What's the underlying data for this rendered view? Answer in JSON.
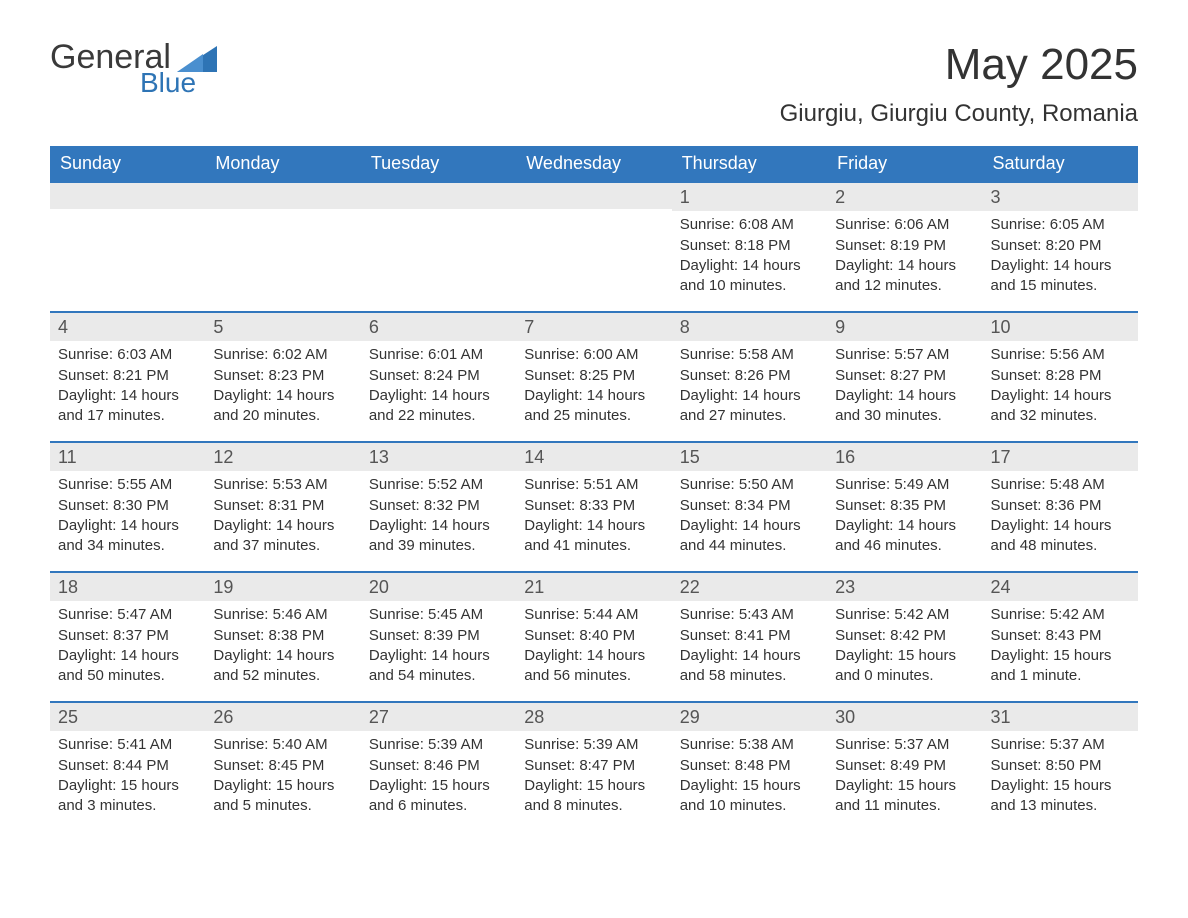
{
  "logo": {
    "word1": "General",
    "word2": "Blue"
  },
  "header": {
    "month_title": "May 2025",
    "location": "Giurgiu, Giurgiu County, Romania"
  },
  "colors": {
    "header_bg": "#3277bd",
    "header_text": "#ffffff",
    "daynum_bg": "#eaeaea",
    "week_border": "#3277bd",
    "logo_accent": "#2e74b5",
    "body_text": "#333333"
  },
  "days_of_week": [
    "Sunday",
    "Monday",
    "Tuesday",
    "Wednesday",
    "Thursday",
    "Friday",
    "Saturday"
  ],
  "labels": {
    "sunrise": "Sunrise:",
    "sunset": "Sunset:",
    "daylight": "Daylight:"
  },
  "weeks": [
    [
      {
        "blank": true
      },
      {
        "blank": true
      },
      {
        "blank": true
      },
      {
        "blank": true
      },
      {
        "n": "1",
        "sunrise": "6:08 AM",
        "sunset": "8:18 PM",
        "daylight": "14 hours and 10 minutes."
      },
      {
        "n": "2",
        "sunrise": "6:06 AM",
        "sunset": "8:19 PM",
        "daylight": "14 hours and 12 minutes."
      },
      {
        "n": "3",
        "sunrise": "6:05 AM",
        "sunset": "8:20 PM",
        "daylight": "14 hours and 15 minutes."
      }
    ],
    [
      {
        "n": "4",
        "sunrise": "6:03 AM",
        "sunset": "8:21 PM",
        "daylight": "14 hours and 17 minutes."
      },
      {
        "n": "5",
        "sunrise": "6:02 AM",
        "sunset": "8:23 PM",
        "daylight": "14 hours and 20 minutes."
      },
      {
        "n": "6",
        "sunrise": "6:01 AM",
        "sunset": "8:24 PM",
        "daylight": "14 hours and 22 minutes."
      },
      {
        "n": "7",
        "sunrise": "6:00 AM",
        "sunset": "8:25 PM",
        "daylight": "14 hours and 25 minutes."
      },
      {
        "n": "8",
        "sunrise": "5:58 AM",
        "sunset": "8:26 PM",
        "daylight": "14 hours and 27 minutes."
      },
      {
        "n": "9",
        "sunrise": "5:57 AM",
        "sunset": "8:27 PM",
        "daylight": "14 hours and 30 minutes."
      },
      {
        "n": "10",
        "sunrise": "5:56 AM",
        "sunset": "8:28 PM",
        "daylight": "14 hours and 32 minutes."
      }
    ],
    [
      {
        "n": "11",
        "sunrise": "5:55 AM",
        "sunset": "8:30 PM",
        "daylight": "14 hours and 34 minutes."
      },
      {
        "n": "12",
        "sunrise": "5:53 AM",
        "sunset": "8:31 PM",
        "daylight": "14 hours and 37 minutes."
      },
      {
        "n": "13",
        "sunrise": "5:52 AM",
        "sunset": "8:32 PM",
        "daylight": "14 hours and 39 minutes."
      },
      {
        "n": "14",
        "sunrise": "5:51 AM",
        "sunset": "8:33 PM",
        "daylight": "14 hours and 41 minutes."
      },
      {
        "n": "15",
        "sunrise": "5:50 AM",
        "sunset": "8:34 PM",
        "daylight": "14 hours and 44 minutes."
      },
      {
        "n": "16",
        "sunrise": "5:49 AM",
        "sunset": "8:35 PM",
        "daylight": "14 hours and 46 minutes."
      },
      {
        "n": "17",
        "sunrise": "5:48 AM",
        "sunset": "8:36 PM",
        "daylight": "14 hours and 48 minutes."
      }
    ],
    [
      {
        "n": "18",
        "sunrise": "5:47 AM",
        "sunset": "8:37 PM",
        "daylight": "14 hours and 50 minutes."
      },
      {
        "n": "19",
        "sunrise": "5:46 AM",
        "sunset": "8:38 PM",
        "daylight": "14 hours and 52 minutes."
      },
      {
        "n": "20",
        "sunrise": "5:45 AM",
        "sunset": "8:39 PM",
        "daylight": "14 hours and 54 minutes."
      },
      {
        "n": "21",
        "sunrise": "5:44 AM",
        "sunset": "8:40 PM",
        "daylight": "14 hours and 56 minutes."
      },
      {
        "n": "22",
        "sunrise": "5:43 AM",
        "sunset": "8:41 PM",
        "daylight": "14 hours and 58 minutes."
      },
      {
        "n": "23",
        "sunrise": "5:42 AM",
        "sunset": "8:42 PM",
        "daylight": "15 hours and 0 minutes."
      },
      {
        "n": "24",
        "sunrise": "5:42 AM",
        "sunset": "8:43 PM",
        "daylight": "15 hours and 1 minute."
      }
    ],
    [
      {
        "n": "25",
        "sunrise": "5:41 AM",
        "sunset": "8:44 PM",
        "daylight": "15 hours and 3 minutes."
      },
      {
        "n": "26",
        "sunrise": "5:40 AM",
        "sunset": "8:45 PM",
        "daylight": "15 hours and 5 minutes."
      },
      {
        "n": "27",
        "sunrise": "5:39 AM",
        "sunset": "8:46 PM",
        "daylight": "15 hours and 6 minutes."
      },
      {
        "n": "28",
        "sunrise": "5:39 AM",
        "sunset": "8:47 PM",
        "daylight": "15 hours and 8 minutes."
      },
      {
        "n": "29",
        "sunrise": "5:38 AM",
        "sunset": "8:48 PM",
        "daylight": "15 hours and 10 minutes."
      },
      {
        "n": "30",
        "sunrise": "5:37 AM",
        "sunset": "8:49 PM",
        "daylight": "15 hours and 11 minutes."
      },
      {
        "n": "31",
        "sunrise": "5:37 AM",
        "sunset": "8:50 PM",
        "daylight": "15 hours and 13 minutes."
      }
    ]
  ]
}
